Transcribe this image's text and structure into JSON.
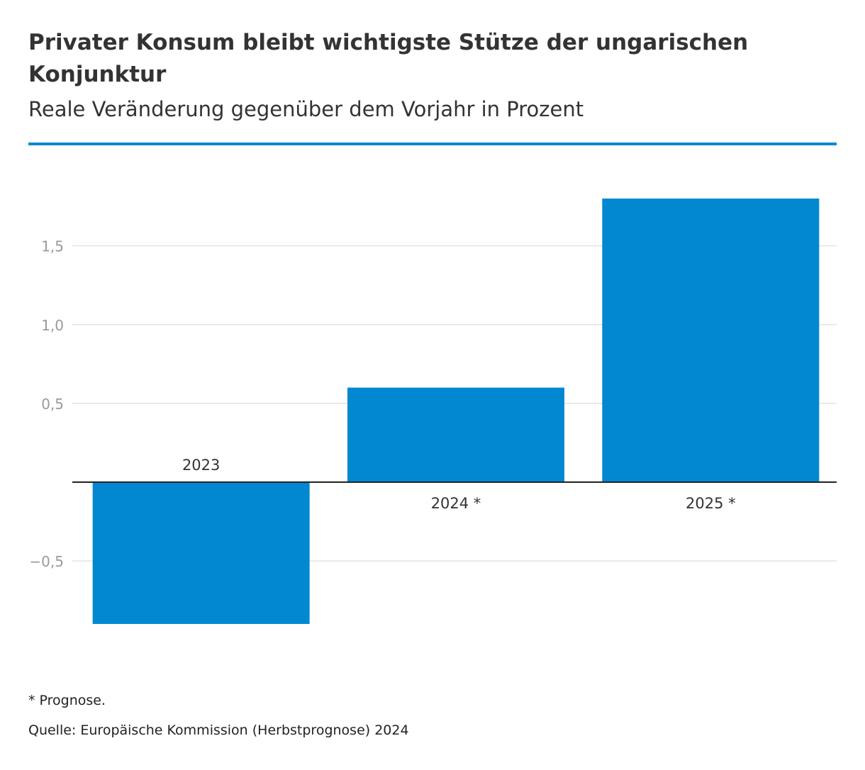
{
  "header": {
    "title": "Privater Konsum bleibt wichtigste Stütze der ungarischen Konjunktur",
    "subtitle": "Reale Veränderung gegenüber dem Vorjahr in Prozent"
  },
  "footer": {
    "note": "* Prognose.",
    "source": "Quelle: Europäische Kommission (Herbstprognose) 2024"
  },
  "colors": {
    "bar": "#0288d1",
    "rule": "#0288d1",
    "grid": "#e3e3e3",
    "tick_label": "#9a9a9a",
    "category_label": "#333333",
    "baseline": "#222222"
  },
  "chart_data": {
    "type": "bar",
    "title": "Privater Konsum bleibt wichtigste Stütze der ungarischen Konjunktur",
    "subtitle": "Reale Veränderung gegenüber dem Vorjahr in Prozent",
    "xlabel": "",
    "ylabel": "",
    "categories": [
      "2023",
      "2024 *",
      "2025 *"
    ],
    "values": [
      -0.9,
      0.6,
      1.8
    ],
    "ylim": [
      -0.9,
      1.8
    ],
    "yticks": [
      -0.5,
      0.5,
      1.0,
      1.5
    ],
    "ytick_labels": [
      "−0,5",
      "0,5",
      "1,0",
      "1,5"
    ],
    "grid": true,
    "legend": "none"
  }
}
